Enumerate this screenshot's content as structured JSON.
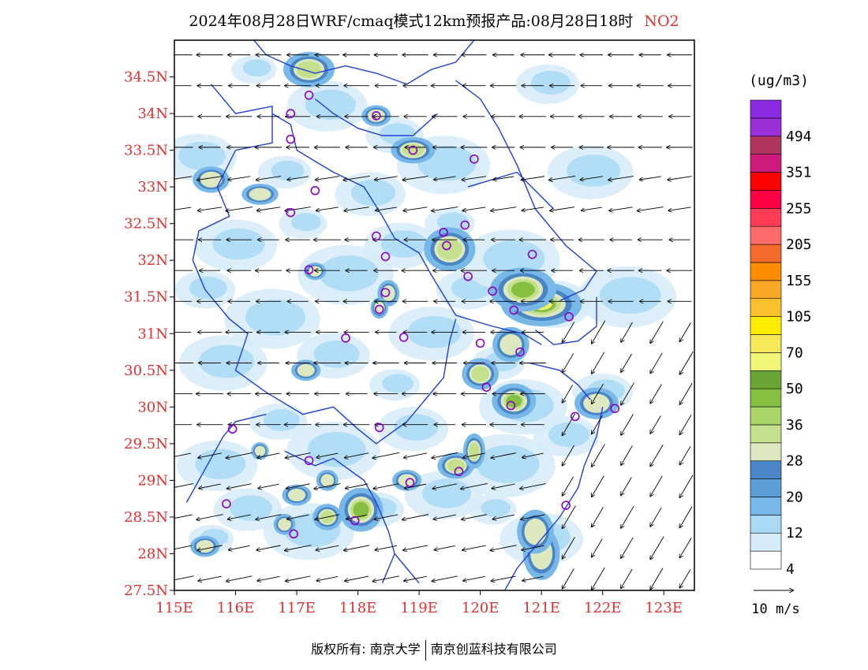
{
  "title": {
    "text": "2024年08月28日WRF/cmaq模式12km预报产品:08月28日18时",
    "species": "NO2",
    "species_color": "#e03030"
  },
  "axes": {
    "lat_labels": [
      "34.5N",
      "34N",
      "33.5N",
      "33N",
      "32.5N",
      "32N",
      "31.5N",
      "31N",
      "30.5N",
      "30N",
      "29.5N",
      "29N",
      "28.5N",
      "28N",
      "27.5N"
    ],
    "lon_labels": [
      "115E",
      "116E",
      "117E",
      "118E",
      "119E",
      "120E",
      "121E",
      "122E",
      "123E"
    ],
    "label_color": "#e03030",
    "lon_range": [
      115,
      123.5
    ],
    "lat_range": [
      27.5,
      35.0
    ]
  },
  "legend": {
    "unit": "(ug/m3)",
    "labels": [
      "494",
      "351",
      "255",
      "205",
      "155",
      "105",
      "70",
      "50",
      "36",
      "28",
      "20",
      "12",
      "4"
    ],
    "colors": [
      "#ffffff",
      "#d7ecfa",
      "#a9d9f5",
      "#78b8e8",
      "#5b9fd6",
      "#4a86c5",
      "#dde8c0",
      "#c4e08c",
      "#a8d468",
      "#86c043",
      "#6aa535",
      "#eef577",
      "#f7e85c",
      "#ffee00",
      "#fbc02d",
      "#f9a825",
      "#fb8c00",
      "#f26b2a",
      "#ff6c6c",
      "#ff3b55",
      "#ff0044",
      "#ff0000",
      "#cc1b7a",
      "#b13460",
      "#9b30d9",
      "#8a2be2"
    ]
  },
  "vector_ref": {
    "label": "10 m/s"
  },
  "stations": [
    [
      116.9,
      34.0
    ],
    [
      117.2,
      34.25
    ],
    [
      116.9,
      33.65
    ],
    [
      117.3,
      32.95
    ],
    [
      116.9,
      32.65
    ],
    [
      118.3,
      33.97
    ],
    [
      118.9,
      33.5
    ],
    [
      119.9,
      33.38
    ],
    [
      118.3,
      32.33
    ],
    [
      118.45,
      32.05
    ],
    [
      119.4,
      32.38
    ],
    [
      119.45,
      32.2
    ],
    [
      119.75,
      32.48
    ],
    [
      120.85,
      32.08
    ],
    [
      117.2,
      31.87
    ],
    [
      119.8,
      31.78
    ],
    [
      120.2,
      31.58
    ],
    [
      120.55,
      31.32
    ],
    [
      121.45,
      31.23
    ],
    [
      118.45,
      31.56
    ],
    [
      118.35,
      31.33
    ],
    [
      117.8,
      30.94
    ],
    [
      118.75,
      30.95
    ],
    [
      120.0,
      30.87
    ],
    [
      120.65,
      30.75
    ],
    [
      120.1,
      30.27
    ],
    [
      120.5,
      30.02
    ],
    [
      121.55,
      29.87
    ],
    [
      122.2,
      29.98
    ],
    [
      115.95,
      29.7
    ],
    [
      118.35,
      29.72
    ],
    [
      117.2,
      29.27
    ],
    [
      118.85,
      28.97
    ],
    [
      119.65,
      29.12
    ],
    [
      115.85,
      28.68
    ],
    [
      117.95,
      28.45
    ],
    [
      116.95,
      28.27
    ],
    [
      121.4,
      28.66
    ]
  ],
  "nox_hotspots": [
    [
      121.0,
      31.4,
      0.55,
      0.25,
      4
    ],
    [
      120.7,
      31.6,
      0.45,
      0.25,
      3
    ],
    [
      119.5,
      32.15,
      0.35,
      0.25,
      2
    ],
    [
      120.55,
      30.08,
      0.3,
      0.2,
      3
    ],
    [
      120.0,
      30.45,
      0.25,
      0.18,
      2
    ],
    [
      118.05,
      28.6,
      0.3,
      0.25,
      3
    ],
    [
      117.5,
      28.5,
      0.2,
      0.15,
      2
    ],
    [
      119.6,
      29.2,
      0.25,
      0.15,
      2
    ],
    [
      119.9,
      29.4,
      0.15,
      0.2,
      2
    ],
    [
      118.9,
      33.5,
      0.3,
      0.15,
      2
    ],
    [
      117.2,
      34.6,
      0.35,
      0.2,
      2
    ],
    [
      121.9,
      30.05,
      0.3,
      0.18,
      1
    ],
    [
      118.8,
      29.0,
      0.2,
      0.12,
      1
    ],
    [
      117.5,
      29.0,
      0.15,
      0.12,
      1
    ],
    [
      117.0,
      28.8,
      0.2,
      0.12,
      1
    ],
    [
      116.8,
      28.4,
      0.15,
      0.12,
      1
    ],
    [
      115.5,
      28.1,
      0.2,
      0.12,
      1
    ],
    [
      116.4,
      29.4,
      0.12,
      0.1,
      1
    ],
    [
      117.15,
      30.5,
      0.2,
      0.12,
      1
    ],
    [
      117.3,
      31.85,
      0.15,
      0.1,
      1
    ],
    [
      118.5,
      31.55,
      0.15,
      0.15,
      1
    ],
    [
      118.35,
      31.35,
      0.12,
      0.12,
      1
    ],
    [
      120.5,
      30.85,
      0.25,
      0.2,
      1
    ],
    [
      115.6,
      33.1,
      0.25,
      0.15,
      1
    ],
    [
      116.4,
      32.9,
      0.25,
      0.12,
      1
    ],
    [
      118.3,
      33.97,
      0.2,
      0.12,
      1
    ],
    [
      121.0,
      28.0,
      0.25,
      0.3,
      1
    ],
    [
      120.9,
      28.3,
      0.25,
      0.25,
      1
    ]
  ]
}
